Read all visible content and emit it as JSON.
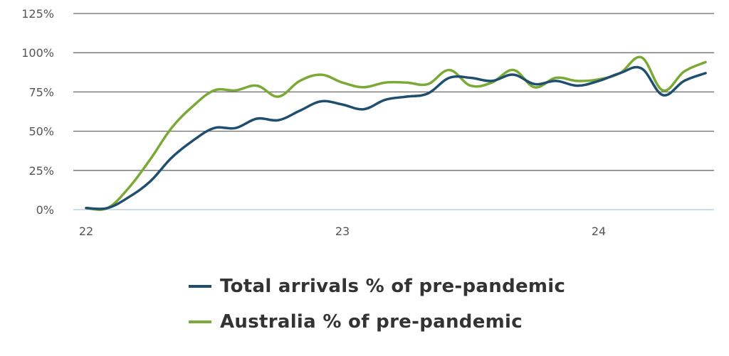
{
  "chart_data": {
    "type": "line",
    "title": "",
    "xlabel": "",
    "ylabel": "",
    "x_ticks": [
      {
        "value": 22,
        "label": "22"
      },
      {
        "value": 23,
        "label": "23"
      },
      {
        "value": 24,
        "label": "24"
      }
    ],
    "y_ticks": [
      {
        "value": 0,
        "label": "0%"
      },
      {
        "value": 25,
        "label": "25%"
      },
      {
        "value": 50,
        "label": "50%"
      },
      {
        "value": 75,
        "label": "75%"
      },
      {
        "value": 100,
        "label": "100%"
      },
      {
        "value": 125,
        "label": "125%"
      }
    ],
    "xlim": [
      22,
      24.5
    ],
    "ylim": [
      0,
      125
    ],
    "grid": true,
    "legend_position": "bottom",
    "series": [
      {
        "name": "Total arrivals % of pre-pandemic",
        "color": "#1f4e6e",
        "x": [
          22.0,
          22.083,
          22.167,
          22.25,
          22.333,
          22.417,
          22.5,
          22.583,
          22.667,
          22.75,
          22.833,
          22.917,
          23.0,
          23.083,
          23.167,
          23.25,
          23.333,
          23.417,
          23.5,
          23.583,
          23.667,
          23.75,
          23.833,
          23.917,
          24.0,
          24.083,
          24.167,
          24.25,
          24.333,
          24.417
        ],
        "y": [
          1,
          1,
          8,
          18,
          33,
          44,
          52,
          52,
          58,
          57,
          63,
          69,
          67,
          64,
          70,
          72,
          74,
          84,
          84,
          82,
          86,
          80,
          82,
          79,
          82,
          87,
          90,
          73,
          82,
          87
        ]
      },
      {
        "name": "Australia % of pre-pandemic",
        "color": "#7aa936",
        "x": [
          22.0,
          22.083,
          22.167,
          22.25,
          22.333,
          22.417,
          22.5,
          22.583,
          22.667,
          22.75,
          22.833,
          22.917,
          23.0,
          23.083,
          23.167,
          23.25,
          23.333,
          23.417,
          23.5,
          23.583,
          23.667,
          23.75,
          23.833,
          23.917,
          24.0,
          24.083,
          24.167,
          24.25,
          24.333,
          24.417
        ],
        "y": [
          1,
          1,
          14,
          32,
          52,
          66,
          76,
          76,
          79,
          72,
          82,
          86,
          81,
          78,
          81,
          81,
          80,
          89,
          79,
          81,
          89,
          78,
          84,
          82,
          83,
          87,
          97,
          76,
          88,
          94
        ]
      }
    ]
  }
}
